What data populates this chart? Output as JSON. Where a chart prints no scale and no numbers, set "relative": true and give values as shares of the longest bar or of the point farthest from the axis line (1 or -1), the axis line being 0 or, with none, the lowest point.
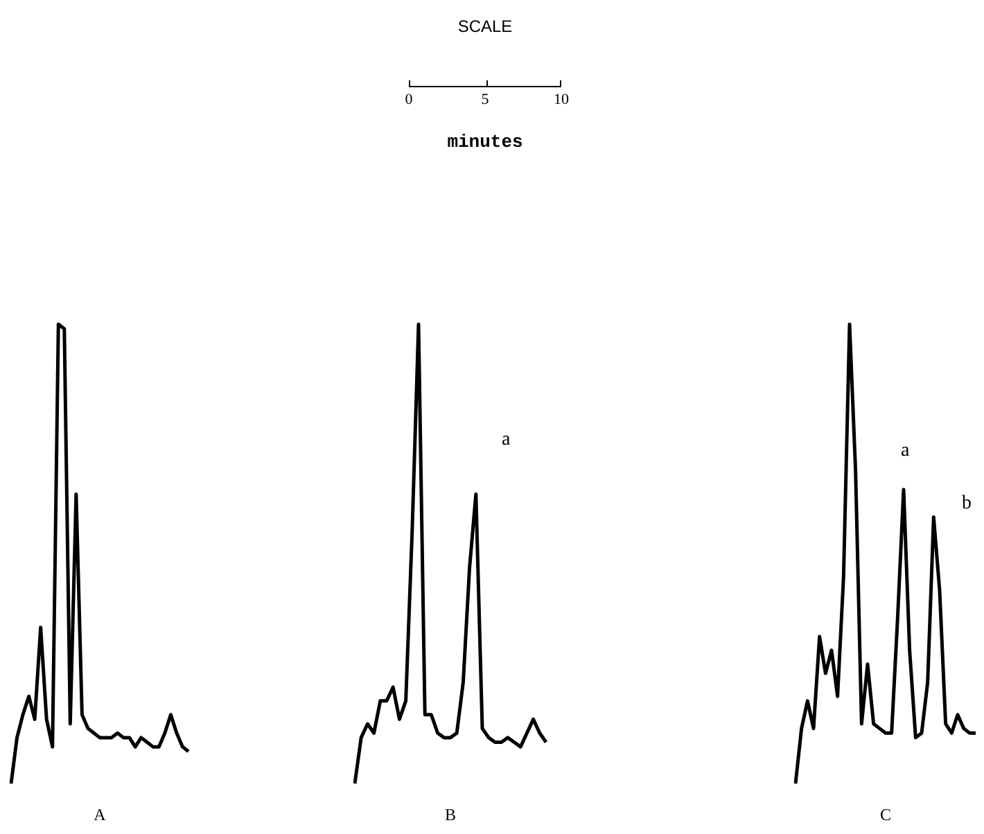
{
  "chart_data": [
    {
      "type": "other",
      "title": "SCALE",
      "xlabel": "minutes",
      "annotations": [
        "0",
        "5",
        "10"
      ]
    },
    {
      "type": "line",
      "xlabel": "A",
      "relative": true,
      "color": "#000000",
      "categories": [
        null,
        null,
        null,
        null,
        null,
        null,
        null,
        null,
        null,
        null,
        null,
        null,
        null,
        null,
        null,
        null,
        null,
        null,
        null,
        null,
        null,
        null,
        null,
        null,
        null,
        null,
        null,
        null,
        null,
        null,
        null
      ],
      "values": [
        0,
        0.1,
        0.15,
        0.19,
        0.14,
        0.34,
        0.14,
        0.08,
        1.0,
        0.99,
        0.13,
        0.63,
        0.15,
        0.12,
        0.11,
        0.1,
        0.1,
        0.1,
        0.11,
        0.1,
        0.1,
        0.08,
        0.1,
        0.09,
        0.08,
        0.08,
        0.11,
        0.15,
        0.11,
        0.08,
        0.07
      ]
    },
    {
      "type": "line",
      "xlabel": "B",
      "relative": true,
      "color": "#000000",
      "annotations": [
        "a"
      ],
      "categories": [
        null,
        null,
        null,
        null,
        null,
        null,
        null,
        null,
        null,
        null,
        null,
        null,
        null,
        null,
        null,
        null,
        null,
        null,
        null,
        null,
        null,
        null,
        null,
        null,
        null,
        null,
        null,
        null,
        null,
        null,
        null
      ],
      "values": [
        0,
        0.1,
        0.13,
        0.11,
        0.18,
        0.18,
        0.21,
        0.14,
        0.18,
        0.55,
        1.0,
        0.15,
        0.15,
        0.11,
        0.1,
        0.1,
        0.11,
        0.22,
        0.47,
        0.63,
        0.12,
        0.1,
        0.09,
        0.09,
        0.1,
        0.09,
        0.08,
        0.11,
        0.14,
        0.11,
        0.09
      ]
    },
    {
      "type": "line",
      "xlabel": "C",
      "relative": true,
      "color": "#000000",
      "annotations": [
        "a",
        "b"
      ],
      "categories": [
        null,
        null,
        null,
        null,
        null,
        null,
        null,
        null,
        null,
        null,
        null,
        null,
        null,
        null,
        null,
        null,
        null,
        null,
        null,
        null,
        null,
        null,
        null,
        null,
        null,
        null,
        null,
        null,
        null,
        null,
        null
      ],
      "values": [
        0,
        0.12,
        0.18,
        0.12,
        0.32,
        0.24,
        0.29,
        0.19,
        0.45,
        1.0,
        0.68,
        0.13,
        0.26,
        0.13,
        0.12,
        0.11,
        0.11,
        0.36,
        0.64,
        0.29,
        0.1,
        0.11,
        0.22,
        0.58,
        0.42,
        0.13,
        0.11,
        0.15,
        0.12,
        0.11,
        0.11
      ]
    }
  ]
}
